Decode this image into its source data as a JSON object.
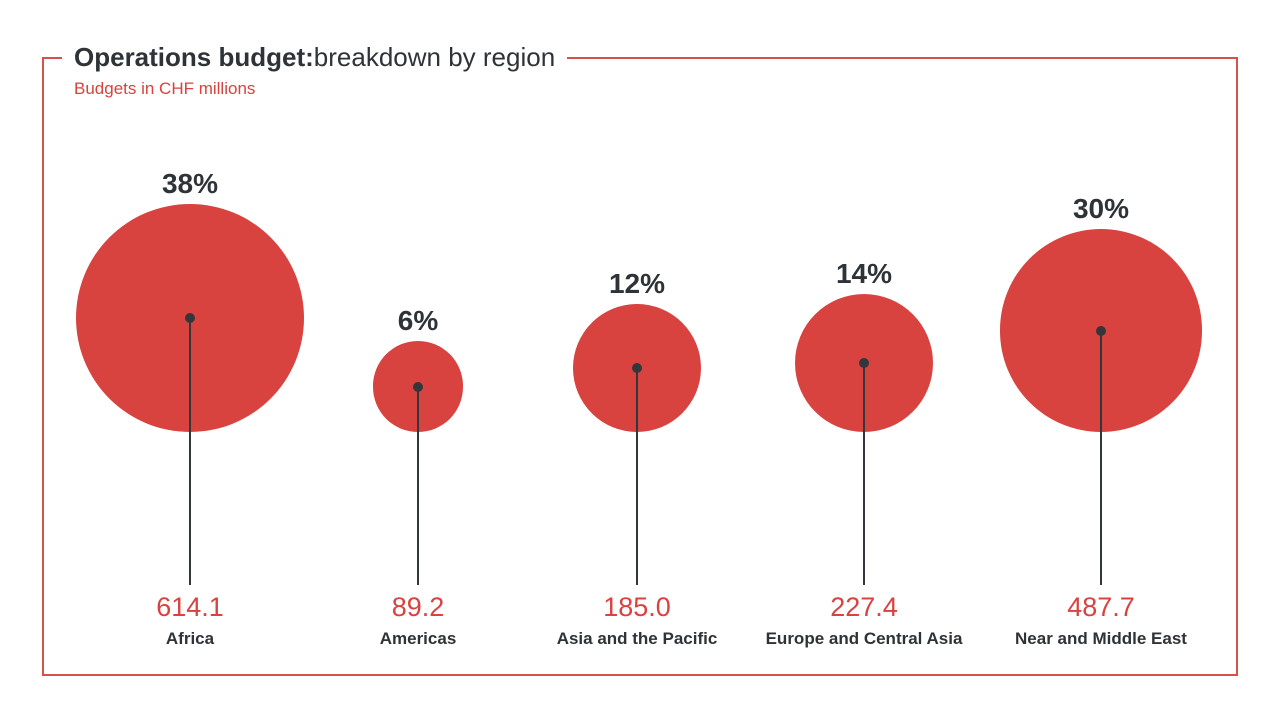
{
  "header": {
    "title_bold": "Operations budget:",
    "title_regular": " breakdown by region",
    "subtitle": "Budgets in CHF millions"
  },
  "colors": {
    "accent_red": "#d8423f",
    "frame_red": "#d6504c",
    "text_dark": "#2e3338",
    "line_dark": "#33373b"
  },
  "chart_data": {
    "type": "bubble",
    "title": "Operations budget: breakdown by region",
    "subtitle": "Budgets in CHF millions",
    "unit": "CHF millions",
    "categories": [
      "Africa",
      "Americas",
      "Asia and the Pacific",
      "Europe and Central Asia",
      "Near and Middle East"
    ],
    "percentages": [
      38,
      6,
      12,
      14,
      30
    ],
    "values": [
      614.1,
      89.2,
      185.0,
      227.4,
      487.7
    ],
    "percent_labels": [
      "38%",
      "6%",
      "12%",
      "14%",
      "30%"
    ],
    "value_labels": [
      "614.1",
      "89.2",
      "185.0",
      "227.4",
      "487.7"
    ],
    "sized_by": "percentages",
    "legend": "none",
    "grid": false
  }
}
